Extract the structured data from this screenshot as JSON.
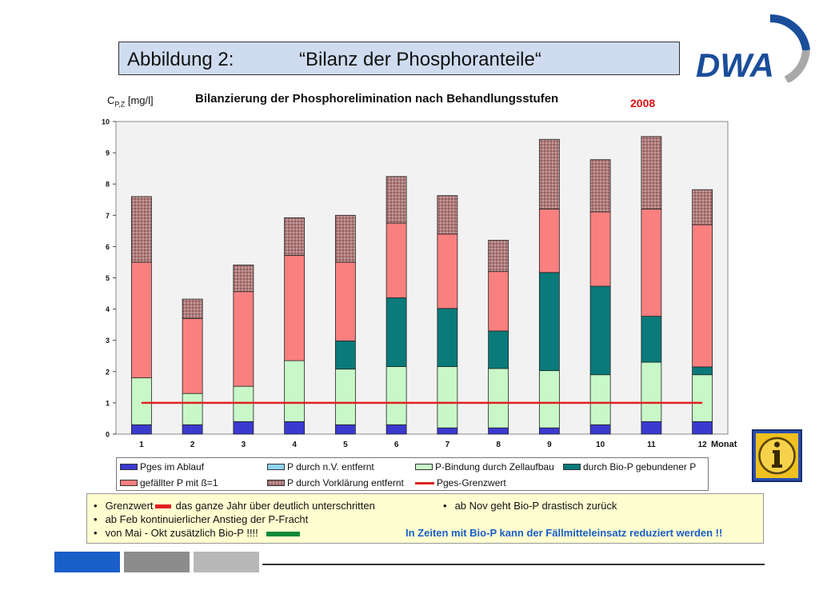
{
  "header": {
    "figure_label": "Abbildung 2:",
    "title": "“Bilanz der Phosphoranteile“"
  },
  "logo": {
    "text": "DWA",
    "color": "#1a4e9a"
  },
  "chart": {
    "ylabel_main": "C",
    "ylabel_sub": "P,Z",
    "ylabel_unit": " [mg/l]",
    "title": "Bilanzierung der Phosphorelimination nach Behandlungsstufen",
    "year": "2008",
    "xlabel": "Monat"
  },
  "chart_data": {
    "type": "bar",
    "stacked": true,
    "title": "Bilanzierung der Phosphorelimination nach Behandlungsstufen",
    "xlabel": "Monat",
    "ylabel": "CP,Z [mg/l]",
    "ylim": [
      0,
      10
    ],
    "yticks": [
      0,
      1,
      2,
      3,
      4,
      5,
      6,
      7,
      8,
      9,
      10
    ],
    "categories": [
      "1",
      "2",
      "3",
      "4",
      "5",
      "6",
      "7",
      "8",
      "9",
      "10",
      "11",
      "12"
    ],
    "series": [
      {
        "name": "Pges im Ablauf",
        "color": "#3a3ad0",
        "values": [
          0.3,
          0.3,
          0.4,
          0.4,
          0.3,
          0.3,
          0.2,
          0.2,
          0.2,
          0.3,
          0.4,
          0.4
        ]
      },
      {
        "name": "P durch n.V. entfernt",
        "color": "#8fd4f0",
        "values": [
          0,
          0,
          0,
          0,
          0,
          0,
          0,
          0,
          0,
          0,
          0,
          0
        ]
      },
      {
        "name": "P-Bindung durch Zellaufbau",
        "color": "#c8f8c8",
        "values": [
          1.5,
          1.0,
          1.13,
          1.95,
          1.78,
          1.86,
          1.96,
          1.9,
          1.83,
          1.6,
          1.9,
          1.5
        ]
      },
      {
        "name": "durch Bio-P gebundener P",
        "color": "#0a7a7a",
        "values": [
          0,
          0,
          0,
          0,
          0.9,
          2.2,
          1.86,
          1.2,
          3.14,
          2.83,
          1.47,
          0.25
        ]
      },
      {
        "name": "gefällter P mit ß=1",
        "color": "#fa8080",
        "values": [
          3.7,
          2.4,
          3.03,
          3.37,
          2.52,
          2.39,
          2.38,
          1.9,
          2.03,
          2.38,
          3.43,
          4.55
        ]
      },
      {
        "name": "P durch Vorklärung entfernt",
        "color": "#b07c7c",
        "pattern": true,
        "values": [
          2.1,
          0.62,
          0.85,
          1.2,
          1.5,
          1.49,
          1.23,
          1.0,
          2.23,
          1.67,
          2.32,
          1.12
        ]
      }
    ],
    "reference_line": {
      "name": "Pges-Grenzwert",
      "value": 1.0,
      "color": "#e02020"
    },
    "legend_position": "bottom"
  },
  "notes": {
    "n1_a": "Grenzwert",
    "n1_b": "das ganze Jahr über deutlich unterschritten",
    "n2": "ab Feb  kontinuierlicher Anstieg der P-Fracht",
    "n3": "von Mai - Okt  zusätzlich Bio-P !!!!",
    "n4": "ab Nov geht Bio-P drastisch zurück",
    "n5": "In Zeiten mit Bio-P kann der Fällmitteleinsatz reduziert werden !!",
    "bullet": "•"
  },
  "colors": {
    "title_bg": "#cfdcef",
    "notes_bg": "#fefed0",
    "footer_blue": "#1a5ec8",
    "footer_gray1": "#8c8c8c",
    "footer_gray2": "#b8b8b8"
  }
}
